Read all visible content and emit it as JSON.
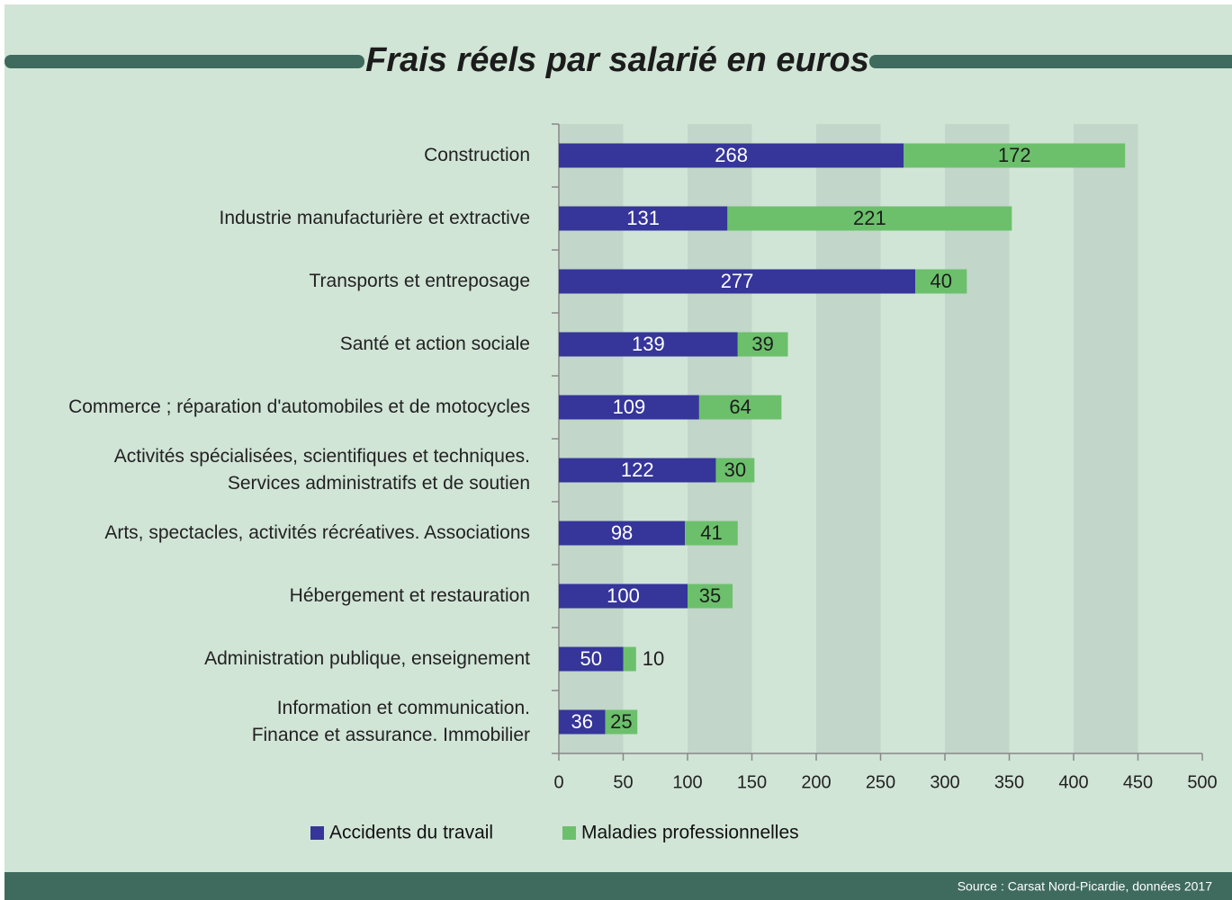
{
  "chart_data": {
    "type": "stacked-barh",
    "title": "Frais réels par salarié en euros",
    "source": "Source : Carsat Nord-Picardie, données 2017",
    "categories": [
      "Construction",
      "Industrie manufacturière et extractive",
      "Transports et entreposage",
      "Santé et action sociale",
      "Commerce ; réparation d'automobiles et de motocycles",
      "Activités spécialisées, scientifiques et techniques.\nServices administratifs et de soutien",
      "Arts, spectacles, activités récréatives. Associations",
      "Hébergement et restauration",
      "Administration publique, enseignement",
      "Information et communication.\nFinance et assurance. Immobilier"
    ],
    "series": [
      {
        "name": "Accidents du travail",
        "color": "#35359a",
        "values": [
          268,
          131,
          277,
          139,
          109,
          122,
          98,
          100,
          50,
          36
        ]
      },
      {
        "name": "Maladies professionnelles",
        "color": "#6cc06c",
        "values": [
          172,
          221,
          40,
          39,
          64,
          30,
          41,
          35,
          10,
          25
        ]
      }
    ],
    "xlim": [
      0,
      500
    ],
    "xticks": [
      0,
      50,
      100,
      150,
      200,
      250,
      300,
      350,
      400,
      450,
      500
    ],
    "grid": true,
    "legend": "bottom"
  }
}
